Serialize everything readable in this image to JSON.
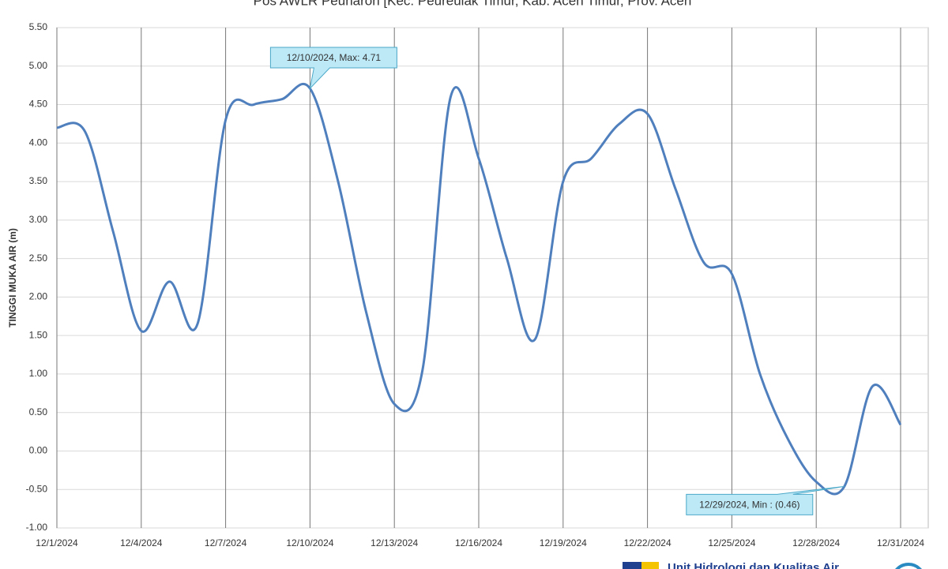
{
  "chart_data": {
    "type": "line",
    "title": "Pos AWLR Peunaron [Kec. Peureulak Timur, Kab. Aceh Timur, Prov. Aceh",
    "y_label": "TINGGI MUKA AIR (m)",
    "x": [
      "12/1/2024",
      "12/2/2024",
      "12/3/2024",
      "12/4/2024",
      "12/5/2024",
      "12/6/2024",
      "12/7/2024",
      "12/8/2024",
      "12/9/2024",
      "12/10/2024",
      "12/11/2024",
      "12/12/2024",
      "12/13/2024",
      "12/14/2024",
      "12/15/2024",
      "12/16/2024",
      "12/17/2024",
      "12/18/2024",
      "12/19/2024",
      "12/20/2024",
      "12/21/2024",
      "12/22/2024",
      "12/23/2024",
      "12/24/2024",
      "12/25/2024",
      "12/26/2024",
      "12/27/2024",
      "12/28/2024",
      "12/29/2024",
      "12/30/2024",
      "12/31/2024"
    ],
    "series": [
      {
        "name": "Tinggi Muka Air",
        "color": "#4f7fbd",
        "values": [
          4.2,
          4.15,
          2.85,
          1.56,
          2.2,
          1.65,
          4.3,
          4.5,
          4.57,
          4.71,
          3.5,
          1.8,
          0.61,
          1.05,
          4.6,
          3.8,
          2.5,
          1.45,
          3.5,
          3.8,
          4.25,
          4.38,
          3.4,
          2.45,
          2.3,
          1.0,
          0.15,
          -0.4,
          -0.46,
          0.84,
          0.34
        ]
      }
    ],
    "ylim": [
      -1,
      5.5
    ],
    "yticks": [
      {
        "value": -1,
        "label": "-1.00"
      },
      {
        "value": -0.5,
        "label": "-0.50"
      },
      {
        "value": 0,
        "label": "0.00"
      },
      {
        "value": 0.5,
        "label": "0.50"
      },
      {
        "value": 1,
        "label": "1.00"
      },
      {
        "value": 1.5,
        "label": "1.50"
      },
      {
        "value": 2,
        "label": "2.00"
      },
      {
        "value": 2.5,
        "label": "2.50"
      },
      {
        "value": 3,
        "label": "3.00"
      },
      {
        "value": 3.5,
        "label": "3.50"
      },
      {
        "value": 4,
        "label": "4.00"
      },
      {
        "value": 4.5,
        "label": "4.50"
      },
      {
        "value": 5,
        "label": "5.00"
      },
      {
        "value": 5.5,
        "label": "5.50"
      }
    ],
    "xticks": [
      "12/1/2024",
      "12/4/2024",
      "12/7/2024",
      "12/10/2024",
      "12/13/2024",
      "12/16/2024",
      "12/19/2024",
      "12/22/2024",
      "12/25/2024",
      "12/28/2024",
      "12/31/2024"
    ],
    "grid": true,
    "annotations": [
      {
        "text": "12/10/2024, Max: 4.71",
        "x": "12/10/2024",
        "y": 4.71
      },
      {
        "text": "12/29/2024, Min : (0.46)",
        "x": "12/29/2024",
        "y": -0.46
      }
    ],
    "footer": "Unit Hidrologi dan Kualitas Air"
  }
}
